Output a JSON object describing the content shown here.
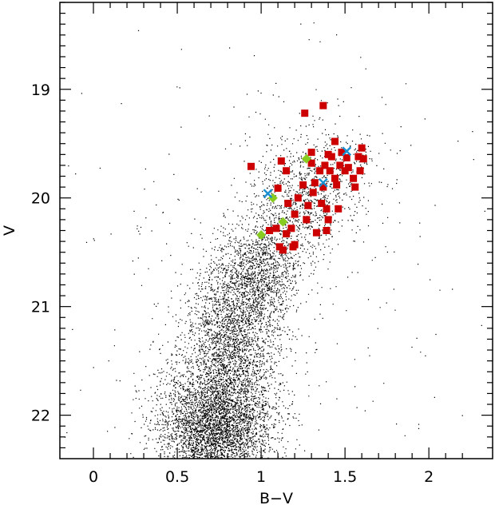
{
  "chart_data": {
    "type": "scatter",
    "title": "",
    "xlabel": "B−V",
    "ylabel": "V",
    "xlim": [
      -0.2,
      2.38
    ],
    "ylim": [
      22.4,
      18.2
    ],
    "y_inverted": true,
    "grid": false,
    "legend": "none",
    "xticks": [
      0,
      0.5,
      1,
      1.5,
      2
    ],
    "xtick_labels": [
      "0",
      "0.5",
      "1",
      "1.5",
      "2"
    ],
    "yticks": [
      19,
      20,
      21,
      22
    ],
    "ytick_labels": [
      "19",
      "20",
      "21",
      "22"
    ],
    "field_stars": {
      "description_visible": "dense black point cloud (field CMD)",
      "color": "#000000",
      "regions": [
        {
          "center_bv": 0.72,
          "center_v": 22.1,
          "sd_bv": 0.17,
          "sd_v": 0.28,
          "weight": 0.45
        },
        {
          "center_bv": 0.82,
          "center_v": 21.3,
          "sd_bv": 0.14,
          "sd_v": 0.35,
          "weight": 0.25
        },
        {
          "center_bv": 0.98,
          "center_v": 20.7,
          "sd_bv": 0.12,
          "sd_v": 0.25,
          "weight": 0.14
        },
        {
          "center_bv": 1.22,
          "center_v": 20.1,
          "sd_bv": 0.14,
          "sd_v": 0.25,
          "weight": 0.08
        },
        {
          "center_bv": 1.4,
          "center_v": 19.7,
          "sd_bv": 0.18,
          "sd_v": 0.25,
          "weight": 0.04
        },
        {
          "center_bv": 1.0,
          "center_v": 20.8,
          "sd_bv": 0.55,
          "sd_v": 1.0,
          "weight": 0.04
        }
      ]
    },
    "series": [
      {
        "marker": "square",
        "color": "#cc0000",
        "points": [
          [
            0.94,
            19.71
          ],
          [
            1.1,
            19.91
          ],
          [
            1.12,
            19.66
          ],
          [
            1.15,
            19.75
          ],
          [
            1.16,
            20.05
          ],
          [
            1.18,
            20.28
          ],
          [
            1.15,
            20.33
          ],
          [
            1.11,
            20.45
          ],
          [
            1.13,
            20.48
          ],
          [
            1.19,
            20.45
          ],
          [
            1.2,
            20.43
          ],
          [
            1.05,
            20.3
          ],
          [
            1.09,
            20.28
          ],
          [
            1.2,
            20.15
          ],
          [
            1.22,
            20.0
          ],
          [
            1.26,
            19.22
          ],
          [
            1.28,
            20.07
          ],
          [
            1.3,
            19.58
          ],
          [
            1.3,
            19.68
          ],
          [
            1.32,
            19.86
          ],
          [
            1.33,
            20.32
          ],
          [
            1.35,
            19.75
          ],
          [
            1.36,
            20.05
          ],
          [
            1.37,
            19.9
          ],
          [
            1.38,
            19.7
          ],
          [
            1.39,
            20.1
          ],
          [
            1.4,
            20.2
          ],
          [
            1.4,
            19.6
          ],
          [
            1.41,
            19.75
          ],
          [
            1.42,
            19.62
          ],
          [
            1.44,
            19.48
          ],
          [
            1.44,
            19.82
          ],
          [
            1.45,
            19.88
          ],
          [
            1.46,
            20.1
          ],
          [
            1.47,
            19.7
          ],
          [
            1.48,
            19.58
          ],
          [
            1.5,
            19.75
          ],
          [
            1.51,
            19.63
          ],
          [
            1.52,
            19.72
          ],
          [
            1.55,
            19.82
          ],
          [
            1.56,
            19.9
          ],
          [
            1.58,
            19.62
          ],
          [
            1.59,
            19.75
          ],
          [
            1.6,
            19.54
          ],
          [
            1.61,
            19.64
          ],
          [
            1.37,
            19.15
          ],
          [
            1.39,
            20.3
          ],
          [
            1.31,
            19.95
          ],
          [
            1.25,
            19.88
          ],
          [
            1.27,
            20.2
          ]
        ]
      },
      {
        "marker": "diamond",
        "color": "#88cc22",
        "points": [
          [
            1.07,
            20.0
          ],
          [
            1.0,
            20.34
          ],
          [
            1.13,
            20.22
          ],
          [
            1.27,
            19.64
          ]
        ]
      },
      {
        "marker": "cross",
        "color": "#1a8fd0",
        "points": [
          [
            1.04,
            19.96
          ],
          [
            1.37,
            19.86
          ],
          [
            1.51,
            19.57
          ]
        ]
      }
    ]
  }
}
